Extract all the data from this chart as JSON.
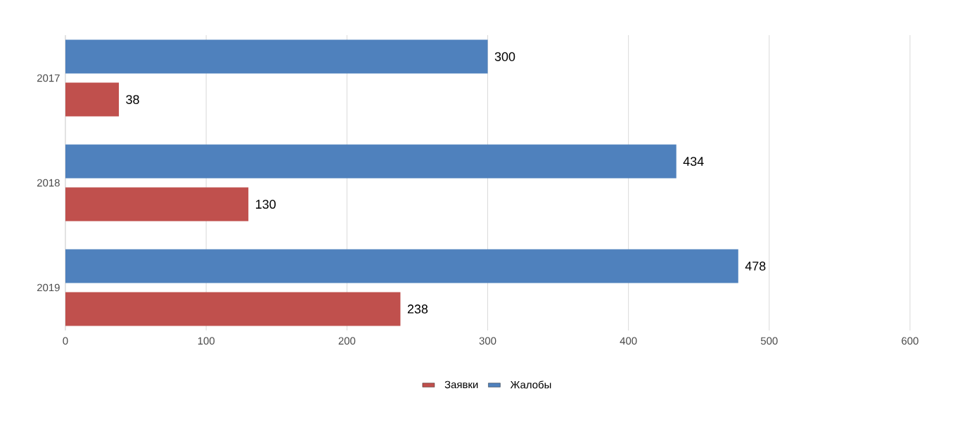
{
  "chart_data": {
    "type": "bar",
    "orientation": "horizontal",
    "categories": [
      "2017",
      "2018",
      "2019"
    ],
    "series": [
      {
        "name": "Заявки",
        "color": "#c0504d",
        "values": [
          38,
          130,
          238
        ]
      },
      {
        "name": "Жалобы",
        "color": "#4f81bd",
        "values": [
          300,
          434,
          478
        ]
      }
    ],
    "xlim": [
      0,
      600
    ],
    "xticks": [
      0,
      100,
      200,
      300,
      400,
      500,
      600
    ],
    "grid": "x",
    "legend": "bottom",
    "data_labels": true
  }
}
